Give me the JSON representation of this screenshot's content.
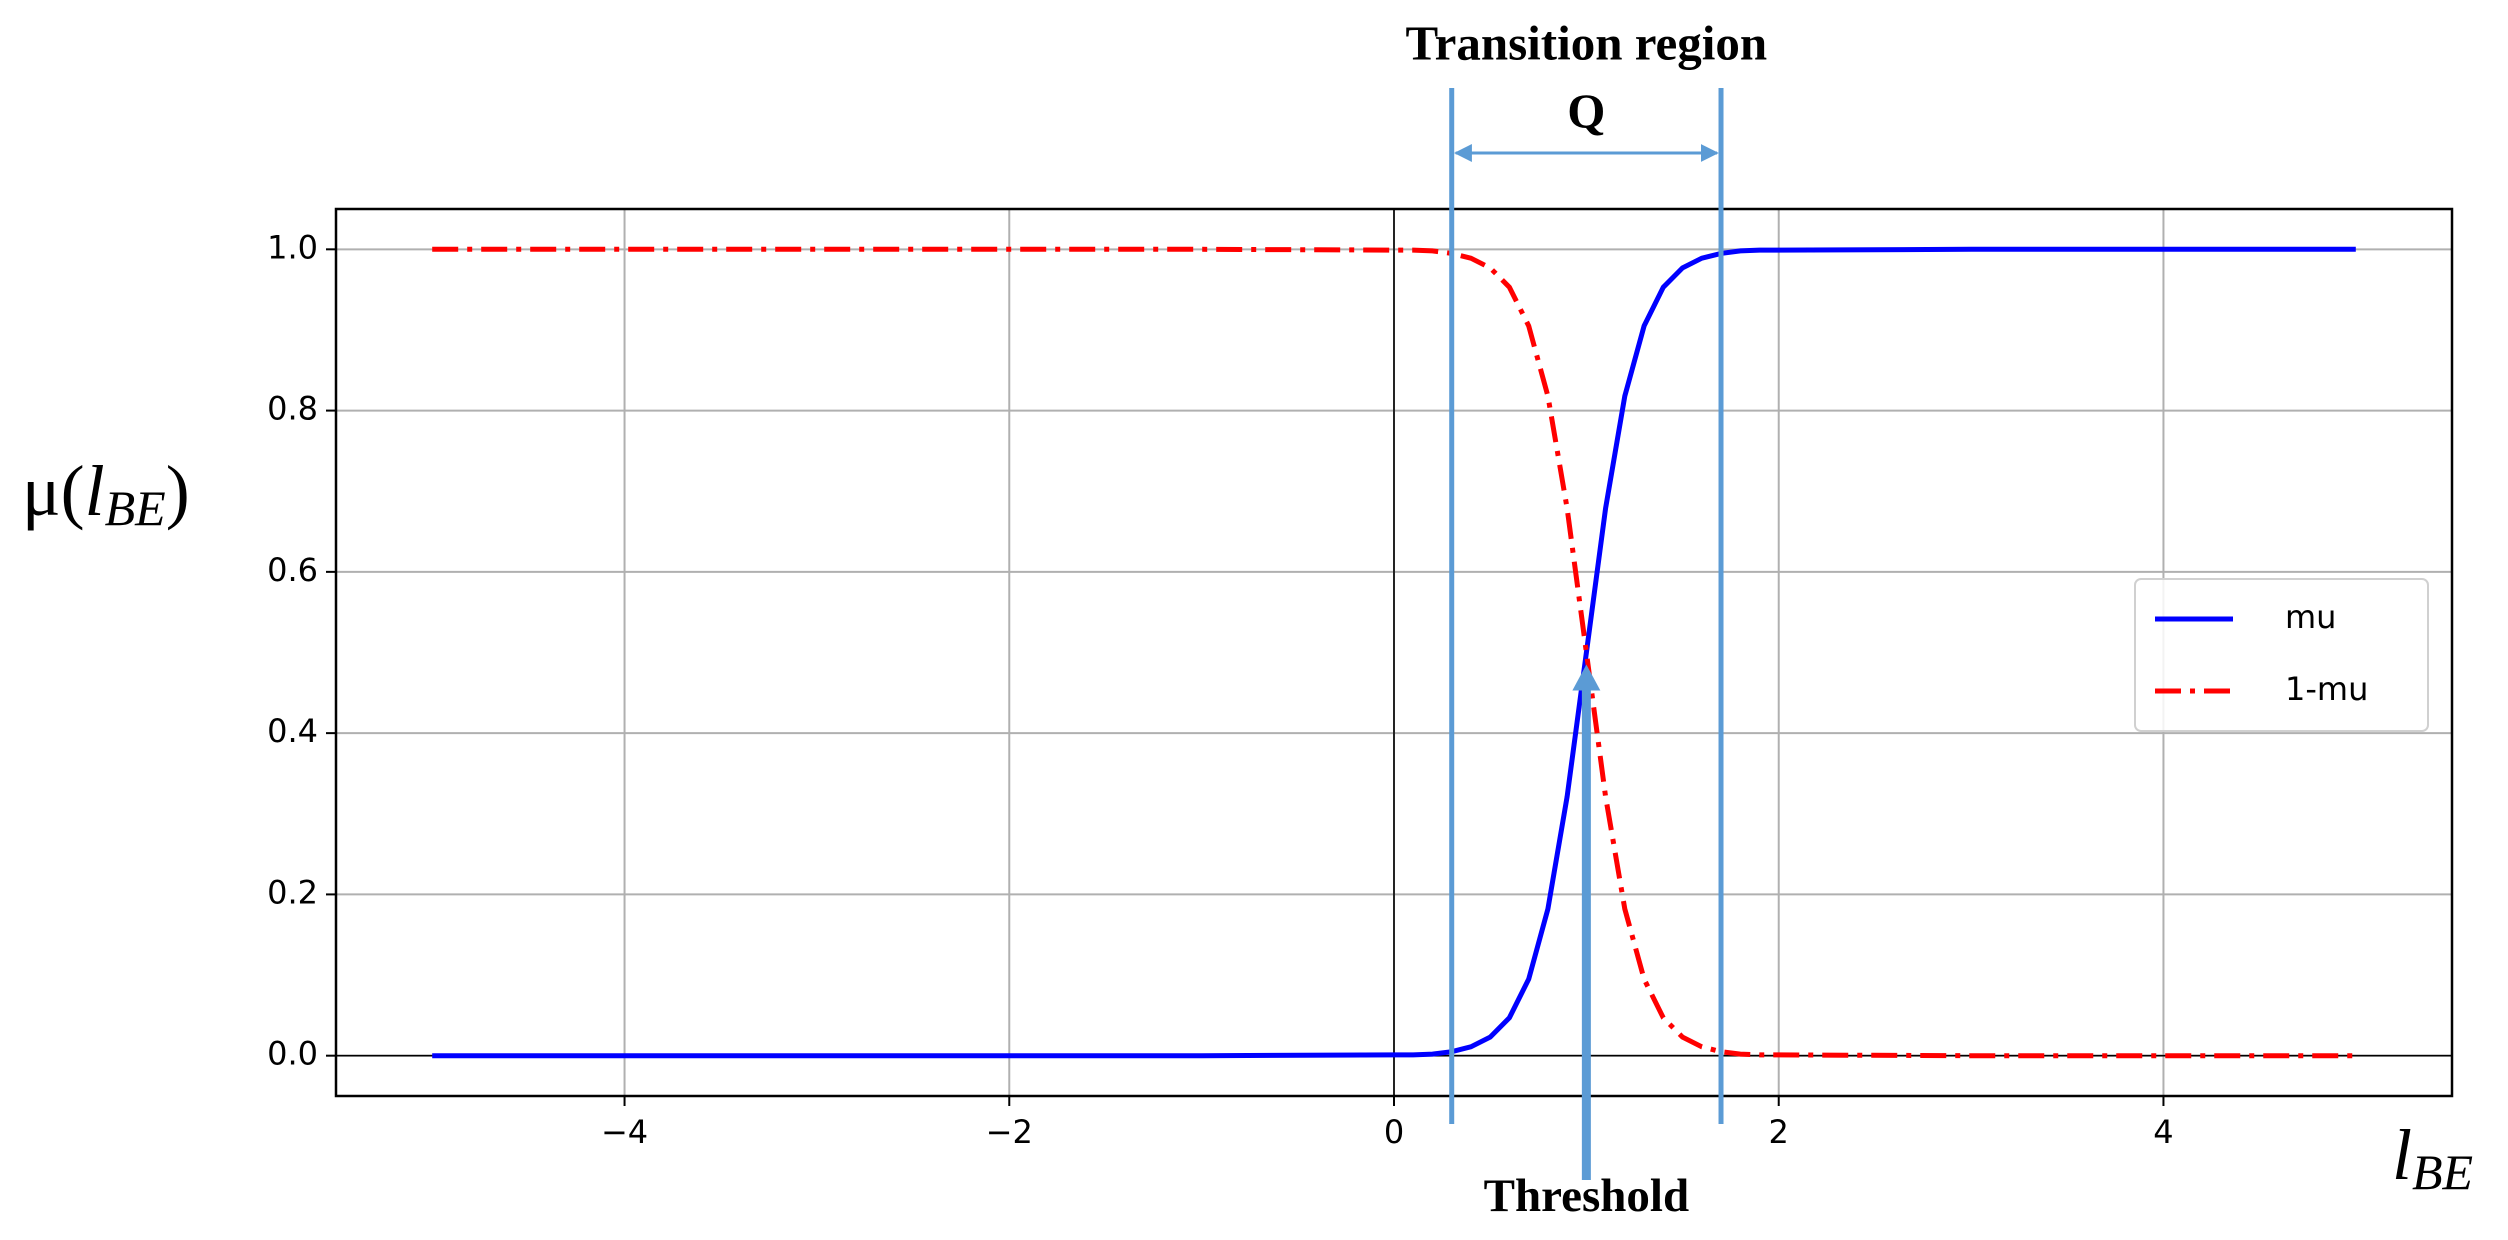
{
  "chart_data": {
    "type": "line",
    "ylabel": [
      "μ(",
      "l",
      "BE",
      ")"
    ],
    "xlabel": [
      "l",
      "BE"
    ],
    "x": [
      -5,
      -4,
      -3,
      -2,
      -1,
      0,
      0.1,
      0.2,
      0.3,
      0.4,
      0.5,
      0.6,
      0.7,
      0.8,
      0.9,
      1,
      1.1,
      1.2,
      1.3,
      1.4,
      1.5,
      1.6,
      1.7,
      1.8,
      1.9,
      2,
      3,
      4,
      5
    ],
    "series": [
      {
        "name": "mu",
        "color": "#0000ff",
        "style": "solid",
        "values": [
          0,
          0,
          0,
          0,
          0,
          0.001,
          0.001,
          0.002,
          0.005,
          0.011,
          0.023,
          0.047,
          0.095,
          0.182,
          0.321,
          0.5,
          0.679,
          0.818,
          0.905,
          0.953,
          0.977,
          0.989,
          0.995,
          0.998,
          0.999,
          0.999,
          1,
          1,
          1
        ]
      },
      {
        "name": "1-mu",
        "color": "#ff0000",
        "style": "dashdot",
        "values": [
          1,
          1,
          1,
          1,
          1,
          0.999,
          0.999,
          0.998,
          0.995,
          0.989,
          0.977,
          0.953,
          0.905,
          0.818,
          0.679,
          0.5,
          0.321,
          0.182,
          0.095,
          0.047,
          0.023,
          0.011,
          0.005,
          0.002,
          0.001,
          0.001,
          0,
          0,
          0
        ]
      }
    ],
    "xlim": [
      -5.5,
      5.5
    ],
    "ylim": [
      -0.05,
      1.05
    ],
    "xticks": [
      {
        "value": -4,
        "label": "−4"
      },
      {
        "value": -2,
        "label": "−2"
      },
      0,
      2,
      4
    ],
    "yticks": [
      {
        "value": 0,
        "label": "0.0"
      },
      {
        "value": 0.2,
        "label": "0.2"
      },
      {
        "value": 0.4,
        "label": "0.4"
      },
      {
        "value": 0.6,
        "label": "0.6"
      },
      {
        "value": 0.8,
        "label": "0.8"
      },
      {
        "value": 1,
        "label": "1.0"
      }
    ],
    "grid": true,
    "legend": "right",
    "annotations": {
      "transition_label": "Transition region",
      "width_label": "Q",
      "transition_region": [
        0.3,
        1.7
      ],
      "threshold_label": "Threshold",
      "threshold": 1,
      "color": "#5b9bd5"
    }
  }
}
